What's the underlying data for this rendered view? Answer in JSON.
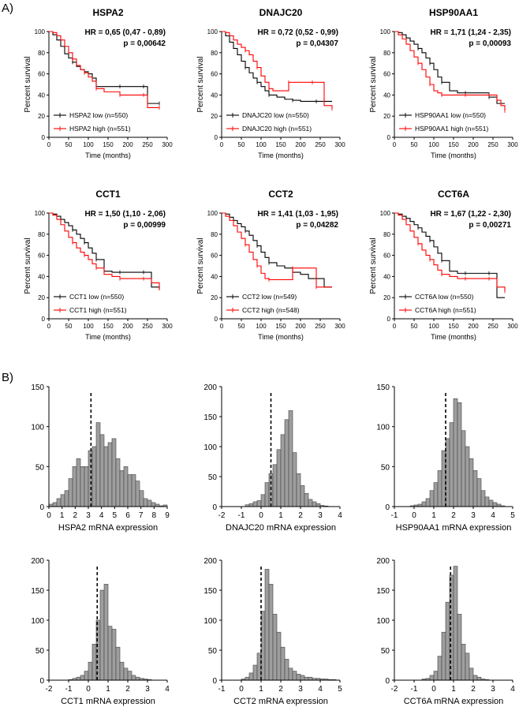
{
  "panel_labels": [
    "A)",
    "B)"
  ],
  "chart_data": [
    {
      "type": "line",
      "subtype": "kaplan-meier",
      "title": "HSPA2",
      "ylabel": "Percent survival",
      "xlabel": "Time (months)",
      "xlim": [
        0,
        300
      ],
      "ylim": [
        0,
        100
      ],
      "xticks": [
        0,
        50,
        100,
        150,
        200,
        250,
        300
      ],
      "yticks": [
        0,
        20,
        40,
        60,
        80,
        100
      ],
      "hr_text": "HR = 0,65 (0,47 - 0,89)",
      "p_text": "p = 0,00642",
      "series": [
        {
          "name": "HSPA2 low (n=550)",
          "color": "#000000",
          "x": [
            0,
            10,
            20,
            30,
            40,
            50,
            60,
            70,
            80,
            90,
            100,
            110,
            120,
            140,
            160,
            180,
            200,
            220,
            240,
            250,
            265,
            280
          ],
          "y": [
            100,
            97,
            92,
            86,
            79,
            75,
            71,
            67,
            64,
            62,
            60,
            56,
            48,
            48,
            48,
            48,
            48,
            48,
            48,
            32,
            32,
            32
          ]
        },
        {
          "name": "HSPA2 high (n=551)",
          "color": "#ff0000",
          "x": [
            0,
            10,
            20,
            30,
            40,
            50,
            60,
            70,
            80,
            90,
            100,
            110,
            120,
            140,
            160,
            180,
            200,
            220,
            240,
            250,
            265,
            280
          ],
          "y": [
            100,
            99,
            96,
            92,
            86,
            80,
            74,
            68,
            64,
            61,
            57,
            53,
            46,
            43,
            43,
            40,
            40,
            40,
            40,
            28,
            28,
            28
          ]
        }
      ]
    },
    {
      "type": "line",
      "subtype": "kaplan-meier",
      "title": "DNAJC20",
      "ylabel": "Percent survival",
      "xlabel": "Time (months)",
      "xlim": [
        0,
        300
      ],
      "ylim": [
        0,
        100
      ],
      "xticks": [
        0,
        50,
        100,
        150,
        200,
        250,
        300
      ],
      "yticks": [
        0,
        20,
        40,
        60,
        80,
        100
      ],
      "hr_text": "HR = 0,72 (0,52 - 0,99)",
      "p_text": "p = 0,04307",
      "series": [
        {
          "name": "DNAJC20 low (n=550)",
          "color": "#000000",
          "x": [
            0,
            10,
            20,
            30,
            40,
            50,
            60,
            70,
            80,
            90,
            100,
            110,
            120,
            140,
            160,
            180,
            200,
            220,
            240,
            260,
            280
          ],
          "y": [
            100,
            96,
            90,
            84,
            78,
            72,
            66,
            61,
            56,
            52,
            48,
            44,
            40,
            38,
            36,
            35,
            34,
            34,
            34,
            34,
            34
          ]
        },
        {
          "name": "DNAJC20 high (n=551)",
          "color": "#ff0000",
          "x": [
            0,
            10,
            20,
            30,
            40,
            50,
            60,
            70,
            80,
            90,
            100,
            110,
            120,
            130,
            150,
            170,
            190,
            210,
            230,
            260,
            270,
            280
          ],
          "y": [
            100,
            99,
            96,
            92,
            88,
            85,
            82,
            78,
            72,
            66,
            58,
            52,
            46,
            44,
            44,
            52,
            52,
            52,
            52,
            30,
            30,
            27
          ]
        }
      ]
    },
    {
      "type": "line",
      "subtype": "kaplan-meier",
      "title": "HSP90AA1",
      "ylabel": "Percent survival",
      "xlabel": "Time (months)",
      "xlim": [
        0,
        300
      ],
      "ylim": [
        0,
        100
      ],
      "xticks": [
        0,
        50,
        100,
        150,
        200,
        250,
        300
      ],
      "yticks": [
        0,
        20,
        40,
        60,
        80,
        100
      ],
      "hr_text": "HR = 1,71 (1,24 - 2,35)",
      "p_text": "p = 0,00093",
      "series": [
        {
          "name": "HSP90AA1 low (n=550)",
          "color": "#000000",
          "x": [
            0,
            10,
            20,
            30,
            40,
            50,
            60,
            70,
            80,
            90,
            100,
            110,
            120,
            140,
            160,
            180,
            200,
            220,
            240,
            260,
            280
          ],
          "y": [
            100,
            99,
            97,
            94,
            91,
            88,
            84,
            80,
            75,
            70,
            64,
            57,
            52,
            44,
            42,
            42,
            42,
            42,
            38,
            32,
            32
          ]
        },
        {
          "name": "HSP90AA1 high (n=551)",
          "color": "#ff0000",
          "x": [
            0,
            10,
            20,
            30,
            40,
            50,
            60,
            70,
            80,
            90,
            100,
            110,
            120,
            140,
            160,
            180,
            200,
            220,
            240,
            260,
            270,
            280
          ],
          "y": [
            100,
            97,
            93,
            88,
            82,
            76,
            70,
            64,
            57,
            50,
            44,
            42,
            40,
            40,
            40,
            40,
            40,
            40,
            40,
            35,
            30,
            25
          ]
        }
      ]
    },
    {
      "type": "line",
      "subtype": "kaplan-meier",
      "title": "CCT1",
      "ylabel": "Percent survival",
      "xlabel": "Time (months)",
      "xlim": [
        0,
        300
      ],
      "ylim": [
        0,
        100
      ],
      "xticks": [
        0,
        50,
        100,
        150,
        200,
        250,
        300
      ],
      "yticks": [
        0,
        20,
        40,
        60,
        80,
        100
      ],
      "hr_text": "HR = 1,50 (1,10 - 2,06)",
      "p_text": "p = 0,00999",
      "series": [
        {
          "name": "CCT1 low (n=550)",
          "color": "#000000",
          "x": [
            0,
            10,
            20,
            30,
            40,
            50,
            60,
            70,
            80,
            90,
            100,
            110,
            120,
            140,
            160,
            180,
            200,
            220,
            240,
            260,
            280
          ],
          "y": [
            100,
            99,
            97,
            94,
            91,
            88,
            84,
            80,
            76,
            72,
            67,
            62,
            56,
            45,
            44,
            44,
            44,
            44,
            44,
            30,
            28
          ]
        },
        {
          "name": "CCT1 high (n=551)",
          "color": "#ff0000",
          "x": [
            0,
            10,
            20,
            30,
            40,
            50,
            60,
            70,
            80,
            90,
            100,
            110,
            120,
            140,
            160,
            180,
            200,
            220,
            240,
            260,
            280
          ],
          "y": [
            100,
            98,
            94,
            89,
            83,
            77,
            72,
            67,
            63,
            60,
            56,
            52,
            48,
            42,
            40,
            38,
            38,
            38,
            38,
            34,
            27
          ]
        }
      ]
    },
    {
      "type": "line",
      "subtype": "kaplan-meier",
      "title": "CCT2",
      "ylabel": "Percent survival",
      "xlabel": "Time (months)",
      "xlim": [
        0,
        300
      ],
      "ylim": [
        0,
        100
      ],
      "xticks": [
        0,
        50,
        100,
        150,
        200,
        250,
        300
      ],
      "yticks": [
        0,
        20,
        40,
        60,
        80,
        100
      ],
      "hr_text": "HR = 1,41 (1,03 - 1,95)",
      "p_text": "p = 0,04282",
      "series": [
        {
          "name": "CCT2 low (n=549)",
          "color": "#000000",
          "x": [
            0,
            10,
            20,
            30,
            40,
            50,
            60,
            70,
            80,
            90,
            100,
            110,
            120,
            140,
            160,
            180,
            200,
            220,
            240,
            260,
            280
          ],
          "y": [
            100,
            99,
            96,
            93,
            90,
            87,
            83,
            79,
            74,
            69,
            63,
            58,
            53,
            50,
            48,
            44,
            42,
            38,
            38,
            30,
            30
          ]
        },
        {
          "name": "CCT2 high (n=548)",
          "color": "#ff0000",
          "x": [
            0,
            10,
            20,
            30,
            40,
            50,
            60,
            70,
            80,
            90,
            100,
            110,
            120,
            140,
            160,
            180,
            200,
            220,
            240,
            260,
            280
          ],
          "y": [
            100,
            97,
            93,
            88,
            82,
            76,
            70,
            63,
            56,
            50,
            43,
            38,
            37,
            37,
            37,
            48,
            48,
            48,
            30,
            30,
            30
          ]
        }
      ]
    },
    {
      "type": "line",
      "subtype": "kaplan-meier",
      "title": "CCT6A",
      "ylabel": "Percent survival",
      "xlabel": "Time (months)",
      "xlim": [
        0,
        300
      ],
      "ylim": [
        0,
        100
      ],
      "xticks": [
        0,
        50,
        100,
        150,
        200,
        250,
        300
      ],
      "yticks": [
        0,
        20,
        40,
        60,
        80,
        100
      ],
      "hr_text": "HR = 1,67 (1,22 - 2,30)",
      "p_text": "p = 0,00271",
      "series": [
        {
          "name": "CCT6A low (n=550)",
          "color": "#000000",
          "x": [
            0,
            10,
            20,
            30,
            40,
            50,
            60,
            70,
            80,
            90,
            100,
            110,
            120,
            140,
            160,
            180,
            200,
            220,
            240,
            260,
            280
          ],
          "y": [
            100,
            99,
            97,
            95,
            92,
            89,
            86,
            82,
            78,
            74,
            68,
            62,
            55,
            45,
            43,
            43,
            43,
            43,
            43,
            20,
            20
          ]
        },
        {
          "name": "CCT6A high (n=551)",
          "color": "#ff0000",
          "x": [
            0,
            10,
            20,
            30,
            40,
            50,
            60,
            70,
            80,
            90,
            100,
            110,
            120,
            140,
            160,
            180,
            200,
            220,
            240,
            260,
            270,
            280
          ],
          "y": [
            100,
            98,
            94,
            89,
            83,
            77,
            71,
            65,
            60,
            56,
            51,
            46,
            42,
            40,
            38,
            38,
            38,
            38,
            38,
            30,
            30,
            26
          ]
        }
      ]
    },
    {
      "type": "bar",
      "subtype": "histogram",
      "xlabel": "HSPA2 mRNA expression",
      "ylabel": "",
      "xlim": [
        0,
        9
      ],
      "ylim": [
        0,
        150
      ],
      "xticks": [
        0,
        1,
        2,
        3,
        4,
        5,
        6,
        7,
        8,
        9
      ],
      "yticks": [
        0,
        50,
        100,
        150
      ],
      "bin_start": 0,
      "bin_width": 0.3,
      "marker": 3.2,
      "values": [
        3,
        5,
        10,
        15,
        20,
        35,
        50,
        60,
        50,
        50,
        70,
        75,
        105,
        90,
        75,
        80,
        85,
        60,
        45,
        50,
        40,
        40,
        32,
        20,
        10,
        8,
        5,
        3,
        1,
        2
      ]
    },
    {
      "type": "bar",
      "subtype": "histogram",
      "xlabel": "DNAJC20 mRNA expression",
      "ylabel": "",
      "xlim": [
        -2,
        4
      ],
      "ylim": [
        0,
        200
      ],
      "xticks": [
        -2,
        -1,
        0,
        1,
        2,
        3,
        4
      ],
      "yticks": [
        0,
        50,
        100,
        150,
        200
      ],
      "bin_start": -0.8,
      "bin_width": 0.2,
      "marker": 0.5,
      "values": [
        3,
        5,
        8,
        10,
        20,
        40,
        55,
        70,
        95,
        120,
        145,
        160,
        90,
        55,
        35,
        22,
        12,
        8,
        5,
        2,
        1
      ]
    },
    {
      "type": "bar",
      "subtype": "histogram",
      "xlabel": "HSP90AA1 mRNA expression",
      "ylabel": "",
      "xlim": [
        -1,
        5
      ],
      "ylim": [
        0,
        150
      ],
      "xticks": [
        -1,
        0,
        1,
        2,
        3,
        4,
        5
      ],
      "yticks": [
        0,
        50,
        100,
        150
      ],
      "bin_start": -0.2,
      "bin_width": 0.2,
      "marker": 1.6,
      "values": [
        1,
        2,
        3,
        6,
        10,
        20,
        30,
        45,
        70,
        85,
        105,
        135,
        130,
        95,
        75,
        60,
        45,
        35,
        20,
        12,
        8,
        5,
        3,
        1
      ]
    },
    {
      "type": "bar",
      "subtype": "histogram",
      "xlabel": "CCT1 mRNA expression",
      "ylabel": "",
      "xlim": [
        -2,
        4
      ],
      "ylim": [
        0,
        200
      ],
      "xticks": [
        -2,
        -1,
        0,
        1,
        2,
        3,
        4
      ],
      "yticks": [
        0,
        50,
        100,
        150,
        200
      ],
      "bin_start": -1,
      "bin_width": 0.2,
      "marker": 0.45,
      "values": [
        1,
        3,
        5,
        8,
        15,
        30,
        60,
        100,
        150,
        160,
        90,
        85,
        55,
        30,
        20,
        15,
        8,
        5,
        3,
        2,
        1
      ]
    },
    {
      "type": "bar",
      "subtype": "histogram",
      "xlabel": "CCT2 mRNA expression",
      "ylabel": "",
      "xlim": [
        -1,
        5
      ],
      "ylim": [
        0,
        200
      ],
      "xticks": [
        -1,
        0,
        1,
        2,
        3,
        4,
        5
      ],
      "yticks": [
        0,
        50,
        100,
        150,
        200
      ],
      "bin_start": 0,
      "bin_width": 0.2,
      "marker": 1.0,
      "values": [
        2,
        5,
        12,
        25,
        45,
        115,
        185,
        160,
        110,
        80,
        55,
        35,
        20,
        15,
        10,
        8,
        5,
        5,
        3,
        3,
        2,
        2,
        1,
        1
      ]
    },
    {
      "type": "bar",
      "subtype": "histogram",
      "xlabel": "CCT6A mRNA expression",
      "ylabel": "",
      "xlim": [
        -2,
        4
      ],
      "ylim": [
        0,
        200
      ],
      "xticks": [
        -2,
        -1,
        0,
        1,
        2,
        3,
        4
      ],
      "yticks": [
        0,
        50,
        100,
        150,
        200
      ],
      "bin_start": -0.6,
      "bin_width": 0.2,
      "marker": 0.85,
      "values": [
        2,
        3,
        8,
        15,
        40,
        80,
        130,
        175,
        190,
        110,
        60,
        45,
        20,
        8,
        5,
        2,
        1
      ]
    }
  ]
}
